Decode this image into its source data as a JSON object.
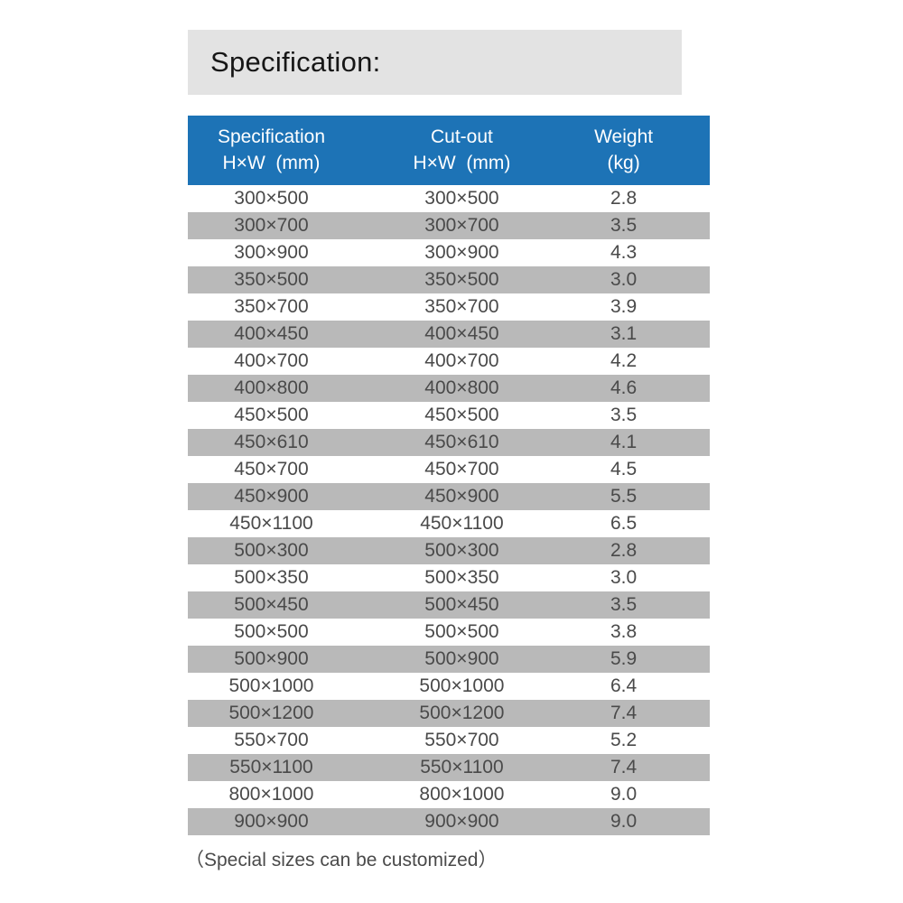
{
  "page": {
    "title": "Specification:",
    "footer_note": "（Special sizes can be customized）"
  },
  "table": {
    "header": {
      "columns": [
        {
          "line1": "Specification",
          "line2": "H×W  (mm)"
        },
        {
          "line1": "Cut-out",
          "line2": "H×W  (mm)"
        },
        {
          "line1": "Weight",
          "line2": "(kg)"
        }
      ]
    },
    "rows": [
      {
        "specification": "300×500",
        "cutout": "300×500",
        "weight": "2.8"
      },
      {
        "specification": "300×700",
        "cutout": "300×700",
        "weight": "3.5"
      },
      {
        "specification": "300×900",
        "cutout": "300×900",
        "weight": "4.3"
      },
      {
        "specification": "350×500",
        "cutout": "350×500",
        "weight": "3.0"
      },
      {
        "specification": "350×700",
        "cutout": "350×700",
        "weight": "3.9"
      },
      {
        "specification": "400×450",
        "cutout": "400×450",
        "weight": "3.1"
      },
      {
        "specification": "400×700",
        "cutout": "400×700",
        "weight": "4.2"
      },
      {
        "specification": "400×800",
        "cutout": "400×800",
        "weight": "4.6"
      },
      {
        "specification": "450×500",
        "cutout": "450×500",
        "weight": "3.5"
      },
      {
        "specification": "450×610",
        "cutout": "450×610",
        "weight": "4.1"
      },
      {
        "specification": "450×700",
        "cutout": "450×700",
        "weight": "4.5"
      },
      {
        "specification": "450×900",
        "cutout": "450×900",
        "weight": "5.5"
      },
      {
        "specification": "450×1100",
        "cutout": "450×1100",
        "weight": "6.5"
      },
      {
        "specification": "500×300",
        "cutout": "500×300",
        "weight": "2.8"
      },
      {
        "specification": "500×350",
        "cutout": "500×350",
        "weight": "3.0"
      },
      {
        "specification": "500×450",
        "cutout": "500×450",
        "weight": "3.5"
      },
      {
        "specification": "500×500",
        "cutout": "500×500",
        "weight": "3.8"
      },
      {
        "specification": "500×900",
        "cutout": "500×900",
        "weight": "5.9"
      },
      {
        "specification": "500×1000",
        "cutout": "500×1000",
        "weight": "6.4"
      },
      {
        "specification": "500×1200",
        "cutout": "500×1200",
        "weight": "7.4"
      },
      {
        "specification": "550×700",
        "cutout": "550×700",
        "weight": "5.2"
      },
      {
        "specification": "550×1100",
        "cutout": "550×1100",
        "weight": "7.4"
      },
      {
        "specification": "800×1000",
        "cutout": "800×1000",
        "weight": "9.0"
      },
      {
        "specification": "900×900",
        "cutout": "900×900",
        "weight": "9.0"
      }
    ]
  },
  "colors": {
    "header_blue": "#1d73b6",
    "row_shade_gray": "#b9b9b9",
    "title_bar_gray": "#e3e3e3",
    "row_text": "#4a4a4a"
  }
}
